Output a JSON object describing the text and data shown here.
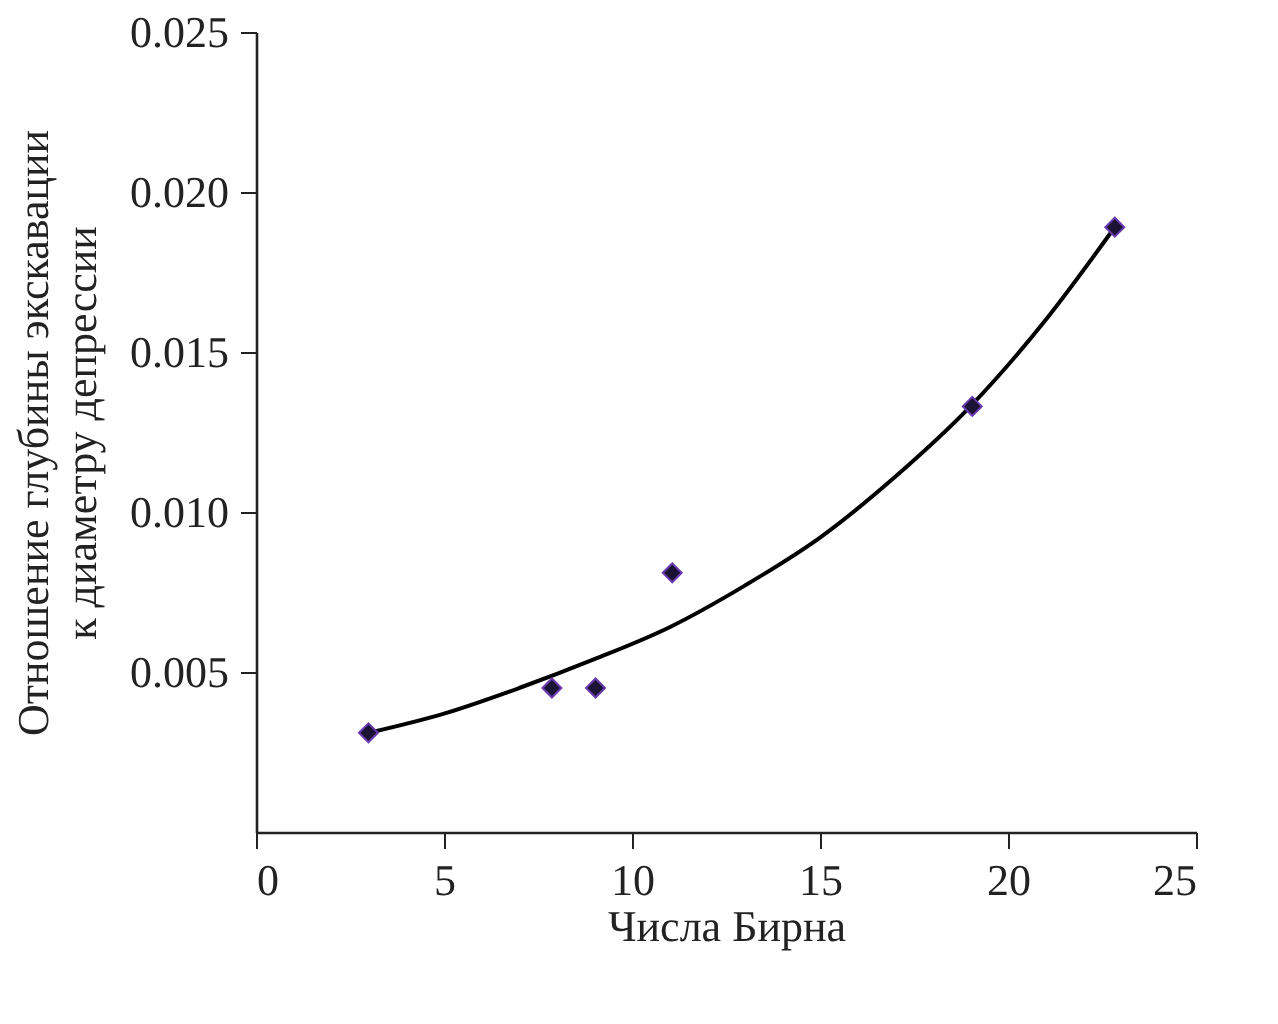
{
  "chart_data": {
    "type": "scatter",
    "xlabel": "Числа Бирна",
    "ylabel": "Отношение глубины экскавации\nк диаметру депрессии",
    "xlim": [
      0,
      25
    ],
    "xticks": [
      0,
      5,
      10,
      15,
      20,
      25
    ],
    "ylim": [
      0,
      0.025
    ],
    "yticks": [
      {
        "value": 0.005,
        "label": "0.005"
      },
      {
        "value": 0.01,
        "label": "0.010"
      },
      {
        "value": 0.015,
        "label": "0.015"
      },
      {
        "value": 0.02,
        "label": "0.020"
      },
      {
        "value": 0.025,
        "label": "0.025"
      }
    ],
    "grid": false,
    "marker": "diamond",
    "series": [
      {
        "color": "#1c1233",
        "x": [
          2.99,
          7.87,
          9.03,
          11.07,
          19.05,
          22.84
        ],
        "values": [
          0.0031,
          0.0045,
          0.0045,
          0.0081,
          0.0133,
          0.0189
        ]
      },
      {
        "type": "line",
        "marker": "none",
        "color": "#000000",
        "line_style": "solid",
        "x": [
          3,
          5,
          7,
          9,
          11,
          13,
          15,
          17,
          19,
          21,
          22.84
        ],
        "values": [
          0.0031,
          0.0037,
          0.0045,
          0.0054,
          0.0064,
          0.0077,
          0.0092,
          0.0111,
          0.0133,
          0.016,
          0.0189
        ]
      }
    ]
  }
}
